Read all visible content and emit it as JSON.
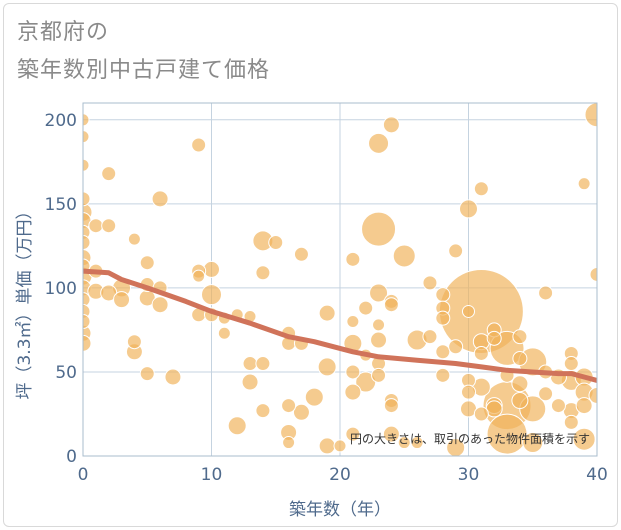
{
  "title_line1": "京都府の",
  "title_line2": "築年数別中古戸建て価格",
  "chart_data": {
    "type": "scatter",
    "xlabel": "築年数（年）",
    "ylabel": "坪（3.3㎡）単価（万円）",
    "xlim": [
      0,
      40
    ],
    "ylim": [
      0,
      210
    ],
    "xticks": [
      0,
      10,
      20,
      30,
      40
    ],
    "yticks": [
      0,
      50,
      100,
      150,
      200
    ],
    "grid": true,
    "note": "円の大きさは、取引のあった物件面積を示す",
    "colors": {
      "bubble": "#f0b35a",
      "bubble_stroke": "#ffffff",
      "trend": "#d0735a",
      "grid": "#c5d3e0",
      "plot_border": "#a9bccd"
    },
    "bubbles": [
      {
        "x": 0,
        "y": 200,
        "s": 6
      },
      {
        "x": 0,
        "y": 190,
        "s": 6
      },
      {
        "x": 0,
        "y": 173,
        "s": 6
      },
      {
        "x": 0,
        "y": 153,
        "s": 7
      },
      {
        "x": 0,
        "y": 145,
        "s": 9
      },
      {
        "x": 0,
        "y": 140,
        "s": 8
      },
      {
        "x": 0,
        "y": 133,
        "s": 7
      },
      {
        "x": 0,
        "y": 127,
        "s": 7
      },
      {
        "x": 0,
        "y": 118,
        "s": 8
      },
      {
        "x": 0,
        "y": 113,
        "s": 7
      },
      {
        "x": 0,
        "y": 107,
        "s": 9
      },
      {
        "x": 0,
        "y": 100,
        "s": 8
      },
      {
        "x": 0,
        "y": 93,
        "s": 7
      },
      {
        "x": 0,
        "y": 86,
        "s": 7
      },
      {
        "x": 0,
        "y": 80,
        "s": 7
      },
      {
        "x": 0,
        "y": 73,
        "s": 8
      },
      {
        "x": 0,
        "y": 67,
        "s": 8
      },
      {
        "x": 1,
        "y": 137,
        "s": 7
      },
      {
        "x": 1,
        "y": 110,
        "s": 7
      },
      {
        "x": 1,
        "y": 98,
        "s": 8
      },
      {
        "x": 2,
        "y": 168,
        "s": 7
      },
      {
        "x": 2,
        "y": 137,
        "s": 7
      },
      {
        "x": 2,
        "y": 97,
        "s": 8
      },
      {
        "x": 3,
        "y": 100,
        "s": 9
      },
      {
        "x": 3,
        "y": 93,
        "s": 8
      },
      {
        "x": 4,
        "y": 129,
        "s": 6
      },
      {
        "x": 4,
        "y": 68,
        "s": 7
      },
      {
        "x": 4,
        "y": 62,
        "s": 8
      },
      {
        "x": 5,
        "y": 115,
        "s": 7
      },
      {
        "x": 5,
        "y": 102,
        "s": 7
      },
      {
        "x": 5,
        "y": 94,
        "s": 8
      },
      {
        "x": 5,
        "y": 49,
        "s": 7
      },
      {
        "x": 6,
        "y": 153,
        "s": 8
      },
      {
        "x": 6,
        "y": 100,
        "s": 7
      },
      {
        "x": 6,
        "y": 90,
        "s": 8
      },
      {
        "x": 7,
        "y": 47,
        "s": 8
      },
      {
        "x": 9,
        "y": 185,
        "s": 7
      },
      {
        "x": 9,
        "y": 110,
        "s": 7
      },
      {
        "x": 9,
        "y": 107,
        "s": 6
      },
      {
        "x": 9,
        "y": 84,
        "s": 7
      },
      {
        "x": 10,
        "y": 111,
        "s": 8
      },
      {
        "x": 10,
        "y": 96,
        "s": 10
      },
      {
        "x": 10,
        "y": 84,
        "s": 7
      },
      {
        "x": 11,
        "y": 82,
        "s": 6
      },
      {
        "x": 11,
        "y": 73,
        "s": 6
      },
      {
        "x": 12,
        "y": 84,
        "s": 6
      },
      {
        "x": 12,
        "y": 18,
        "s": 9
      },
      {
        "x": 13,
        "y": 83,
        "s": 6
      },
      {
        "x": 13,
        "y": 55,
        "s": 7
      },
      {
        "x": 13,
        "y": 44,
        "s": 8
      },
      {
        "x": 14,
        "y": 128,
        "s": 10
      },
      {
        "x": 14,
        "y": 109,
        "s": 7
      },
      {
        "x": 14,
        "y": 55,
        "s": 7
      },
      {
        "x": 14,
        "y": 27,
        "s": 7
      },
      {
        "x": 15,
        "y": 127,
        "s": 7
      },
      {
        "x": 16,
        "y": 73,
        "s": 7
      },
      {
        "x": 16,
        "y": 67,
        "s": 7
      },
      {
        "x": 16,
        "y": 30,
        "s": 7
      },
      {
        "x": 16,
        "y": 14,
        "s": 8
      },
      {
        "x": 16,
        "y": 8,
        "s": 6
      },
      {
        "x": 17,
        "y": 120,
        "s": 7
      },
      {
        "x": 17,
        "y": 67,
        "s": 7
      },
      {
        "x": 17,
        "y": 26,
        "s": 8
      },
      {
        "x": 18,
        "y": 35,
        "s": 9
      },
      {
        "x": 19,
        "y": 85,
        "s": 8
      },
      {
        "x": 19,
        "y": 53,
        "s": 9
      },
      {
        "x": 19,
        "y": 6,
        "s": 8
      },
      {
        "x": 20,
        "y": 6,
        "s": 6
      },
      {
        "x": 21,
        "y": 117,
        "s": 7
      },
      {
        "x": 21,
        "y": 80,
        "s": 6
      },
      {
        "x": 21,
        "y": 67,
        "s": 9
      },
      {
        "x": 21,
        "y": 50,
        "s": 7
      },
      {
        "x": 21,
        "y": 38,
        "s": 8
      },
      {
        "x": 21,
        "y": 13,
        "s": 7
      },
      {
        "x": 22,
        "y": 88,
        "s": 7
      },
      {
        "x": 22,
        "y": 60,
        "s": 6
      },
      {
        "x": 22,
        "y": 44,
        "s": 10
      },
      {
        "x": 23,
        "y": 186,
        "s": 10
      },
      {
        "x": 23,
        "y": 135,
        "s": 17
      },
      {
        "x": 23,
        "y": 97,
        "s": 9
      },
      {
        "x": 23,
        "y": 78,
        "s": 6
      },
      {
        "x": 23,
        "y": 69,
        "s": 8
      },
      {
        "x": 23,
        "y": 55,
        "s": 7
      },
      {
        "x": 23,
        "y": 48,
        "s": 7
      },
      {
        "x": 24,
        "y": 197,
        "s": 8
      },
      {
        "x": 24,
        "y": 92,
        "s": 7
      },
      {
        "x": 24,
        "y": 90,
        "s": 7
      },
      {
        "x": 24,
        "y": 33,
        "s": 7
      },
      {
        "x": 24,
        "y": 30,
        "s": 7
      },
      {
        "x": 24,
        "y": 13,
        "s": 8
      },
      {
        "x": 25,
        "y": 119,
        "s": 11
      },
      {
        "x": 25,
        "y": 8,
        "s": 6
      },
      {
        "x": 26,
        "y": 69,
        "s": 10
      },
      {
        "x": 26,
        "y": 8,
        "s": 6
      },
      {
        "x": 27,
        "y": 103,
        "s": 7
      },
      {
        "x": 27,
        "y": 71,
        "s": 7
      },
      {
        "x": 28,
        "y": 96,
        "s": 7
      },
      {
        "x": 28,
        "y": 88,
        "s": 7
      },
      {
        "x": 28,
        "y": 82,
        "s": 7
      },
      {
        "x": 28,
        "y": 62,
        "s": 7
      },
      {
        "x": 28,
        "y": 48,
        "s": 7
      },
      {
        "x": 29,
        "y": 122,
        "s": 7
      },
      {
        "x": 29,
        "y": 65,
        "s": 7
      },
      {
        "x": 29,
        "y": 5,
        "s": 9
      },
      {
        "x": 30,
        "y": 147,
        "s": 9
      },
      {
        "x": 30,
        "y": 86,
        "s": 6
      },
      {
        "x": 30,
        "y": 45,
        "s": 7
      },
      {
        "x": 30,
        "y": 38,
        "s": 7
      },
      {
        "x": 30,
        "y": 28,
        "s": 8
      },
      {
        "x": 31,
        "y": 159,
        "s": 7
      },
      {
        "x": 31,
        "y": 86,
        "s": 42
      },
      {
        "x": 31,
        "y": 68,
        "s": 8
      },
      {
        "x": 31,
        "y": 61,
        "s": 7
      },
      {
        "x": 31,
        "y": 41,
        "s": 9
      },
      {
        "x": 31,
        "y": 25,
        "s": 7
      },
      {
        "x": 32,
        "y": 75,
        "s": 7
      },
      {
        "x": 32,
        "y": 70,
        "s": 7
      },
      {
        "x": 32,
        "y": 30,
        "s": 8
      },
      {
        "x": 32,
        "y": 28,
        "s": 8
      },
      {
        "x": 33,
        "y": 64,
        "s": 17
      },
      {
        "x": 33,
        "y": 48,
        "s": 7
      },
      {
        "x": 33,
        "y": 30,
        "s": 24
      },
      {
        "x": 33,
        "y": 13,
        "s": 20
      },
      {
        "x": 34,
        "y": 71,
        "s": 7
      },
      {
        "x": 34,
        "y": 58,
        "s": 7
      },
      {
        "x": 34,
        "y": 43,
        "s": 8
      },
      {
        "x": 34,
        "y": 33,
        "s": 8
      },
      {
        "x": 35,
        "y": 56,
        "s": 14
      },
      {
        "x": 35,
        "y": 28,
        "s": 13
      },
      {
        "x": 35,
        "y": 8,
        "s": 10
      },
      {
        "x": 36,
        "y": 97,
        "s": 7
      },
      {
        "x": 36,
        "y": 50,
        "s": 7
      },
      {
        "x": 36,
        "y": 37,
        "s": 7
      },
      {
        "x": 37,
        "y": 47,
        "s": 8
      },
      {
        "x": 37,
        "y": 30,
        "s": 7
      },
      {
        "x": 38,
        "y": 61,
        "s": 7
      },
      {
        "x": 38,
        "y": 55,
        "s": 7
      },
      {
        "x": 38,
        "y": 45,
        "s": 10
      },
      {
        "x": 38,
        "y": 27,
        "s": 8
      },
      {
        "x": 38,
        "y": 20,
        "s": 7
      },
      {
        "x": 39,
        "y": 162,
        "s": 6
      },
      {
        "x": 39,
        "y": 47,
        "s": 9
      },
      {
        "x": 39,
        "y": 38,
        "s": 9
      },
      {
        "x": 39,
        "y": 30,
        "s": 8
      },
      {
        "x": 39,
        "y": 10,
        "s": 11
      },
      {
        "x": 40,
        "y": 203,
        "s": 12
      },
      {
        "x": 40,
        "y": 108,
        "s": 7
      },
      {
        "x": 40,
        "y": 36,
        "s": 8
      }
    ],
    "trend": {
      "x": [
        0,
        2,
        3,
        5,
        8,
        10,
        13,
        16,
        18,
        21,
        23,
        26,
        29,
        31,
        33,
        35,
        37,
        38,
        39,
        40
      ],
      "y": [
        110,
        109,
        105,
        100,
        92,
        86,
        79,
        71,
        68,
        62,
        59,
        57,
        55,
        53,
        51,
        50,
        49,
        49,
        47,
        45
      ]
    }
  }
}
